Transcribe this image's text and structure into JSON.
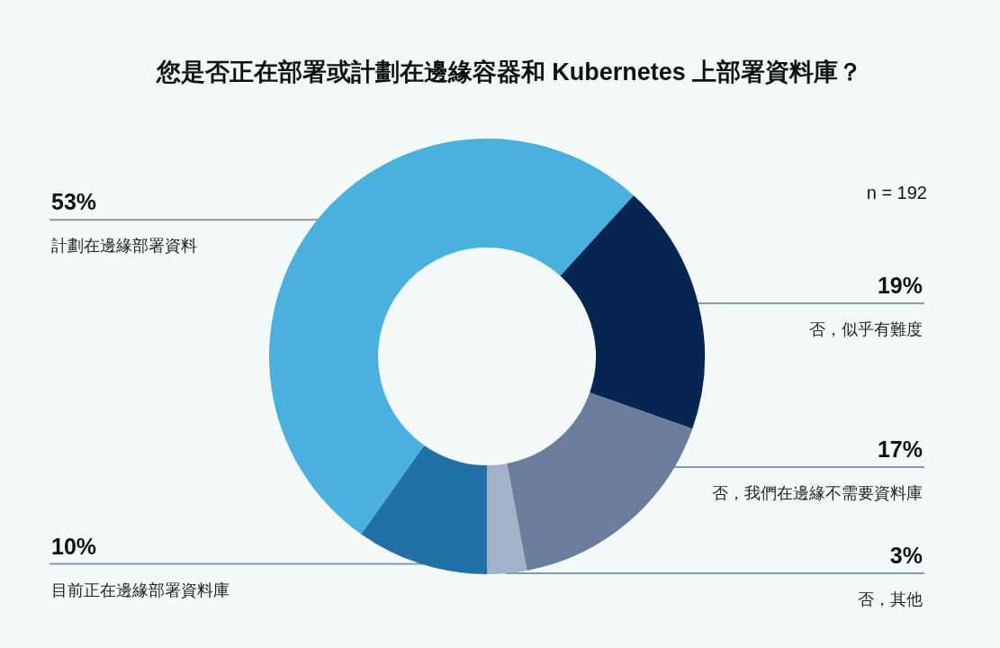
{
  "chart_data": {
    "type": "donut",
    "title": "您是否正在部署或計劃在邊緣容器和 Kubernetes 上部署資料庫？",
    "categories": [
      "目前正在邊緣部署資料庫",
      "計劃在邊緣部署資料",
      "否，似乎有難度",
      "否，我們在邊緣不需要資料庫",
      "否，其他"
    ],
    "values": [
      10,
      53,
      19,
      17,
      3
    ],
    "colors": [
      "#2170a8",
      "#4ab0de",
      "#062651",
      "#6a7d9c",
      "#a3b2c9"
    ],
    "value_labels": [
      "10%",
      "53%",
      "19%",
      "17%",
      "3%"
    ],
    "annotations": [
      "n = 192"
    ]
  }
}
